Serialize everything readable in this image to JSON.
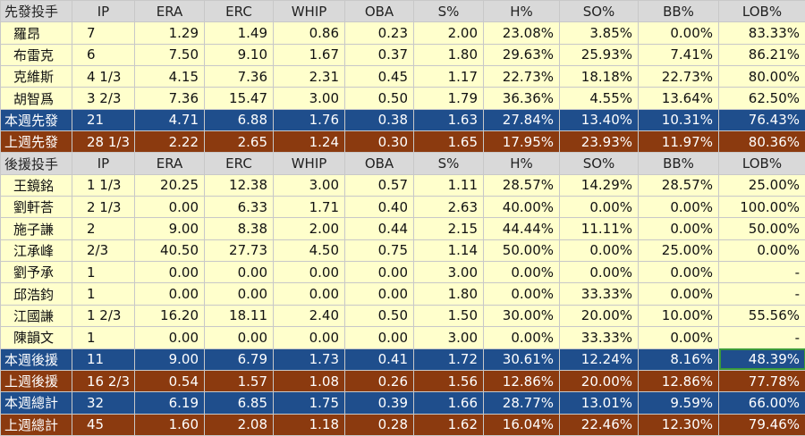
{
  "table": {
    "rows": [
      [
        "先發投手",
        "IP",
        "ERA",
        "ERC",
        "WHIP",
        "OBA",
        "S%",
        "H%",
        "SO%",
        "BB%",
        "LOB%"
      ],
      [
        "羅昂",
        "7",
        "1.29",
        "1.49",
        "0.86",
        "0.23",
        "2.00",
        "23.08%",
        "3.85%",
        "0.00%",
        "83.33%"
      ],
      [
        "布雷克",
        "6",
        "7.50",
        "9.10",
        "1.67",
        "0.37",
        "1.80",
        "29.63%",
        "25.93%",
        "7.41%",
        "86.21%"
      ],
      [
        "克維斯",
        "4 1/3",
        "4.15",
        "7.36",
        "2.31",
        "0.45",
        "1.17",
        "22.73%",
        "18.18%",
        "22.73%",
        "80.00%"
      ],
      [
        "胡智爲",
        "3 2/3",
        "7.36",
        "15.47",
        "3.00",
        "0.50",
        "1.79",
        "36.36%",
        "4.55%",
        "13.64%",
        "62.50%"
      ],
      [
        "本週先發",
        "21",
        "4.71",
        "6.88",
        "1.76",
        "0.38",
        "1.63",
        "27.84%",
        "13.40%",
        "10.31%",
        "76.43%"
      ],
      [
        "上週先發",
        "28 1/3",
        "2.22",
        "2.65",
        "1.24",
        "0.30",
        "1.65",
        "17.95%",
        "23.93%",
        "11.97%",
        "80.36%"
      ],
      [
        "後援投手",
        "IP",
        "ERA",
        "ERC",
        "WHIP",
        "OBA",
        "S%",
        "H%",
        "SO%",
        "BB%",
        "LOB%"
      ],
      [
        "王鏡銘",
        "1 1/3",
        "20.25",
        "12.38",
        "3.00",
        "0.57",
        "1.11",
        "28.57%",
        "14.29%",
        "28.57%",
        "25.00%"
      ],
      [
        "劉軒荅",
        "2 1/3",
        "0.00",
        "6.33",
        "1.71",
        "0.40",
        "2.63",
        "40.00%",
        "0.00%",
        "0.00%",
        "100.00%"
      ],
      [
        "施子謙",
        "2",
        "9.00",
        "8.38",
        "2.00",
        "0.44",
        "2.15",
        "44.44%",
        "11.11%",
        "0.00%",
        "50.00%"
      ],
      [
        "江承峰",
        "2/3",
        "40.50",
        "27.73",
        "4.50",
        "0.75",
        "1.14",
        "50.00%",
        "0.00%",
        "25.00%",
        "0.00%"
      ],
      [
        "劉予承",
        "1",
        "0.00",
        "0.00",
        "0.00",
        "0.00",
        "3.00",
        "0.00%",
        "0.00%",
        "0.00%",
        "-"
      ],
      [
        "邱浩鈞",
        "1",
        "0.00",
        "0.00",
        "0.00",
        "0.00",
        "1.80",
        "0.00%",
        "33.33%",
        "0.00%",
        "-"
      ],
      [
        "江國謙",
        "1 2/3",
        "16.20",
        "18.11",
        "2.40",
        "0.50",
        "1.50",
        "30.00%",
        "20.00%",
        "10.00%",
        "55.56%"
      ],
      [
        "陳韻文",
        "1",
        "0.00",
        "0.00",
        "0.00",
        "0.00",
        "3.00",
        "0.00%",
        "33.33%",
        "0.00%",
        "-"
      ],
      [
        "本週後援",
        "11",
        "9.00",
        "6.79",
        "1.73",
        "0.41",
        "1.72",
        "30.61%",
        "12.24%",
        "8.16%",
        "48.39%"
      ],
      [
        "上週後援",
        "16 2/3",
        "0.54",
        "1.57",
        "1.08",
        "0.26",
        "1.56",
        "12.86%",
        "20.00%",
        "12.86%",
        "77.78%"
      ],
      [
        "本週總計",
        "32",
        "6.19",
        "6.85",
        "1.75",
        "0.39",
        "1.66",
        "28.77%",
        "13.01%",
        "9.59%",
        "66.00%"
      ],
      [
        "上週總計",
        "45",
        "1.60",
        "2.08",
        "1.18",
        "0.28",
        "1.62",
        "16.04%",
        "22.46%",
        "12.30%",
        "79.46%"
      ]
    ]
  }
}
